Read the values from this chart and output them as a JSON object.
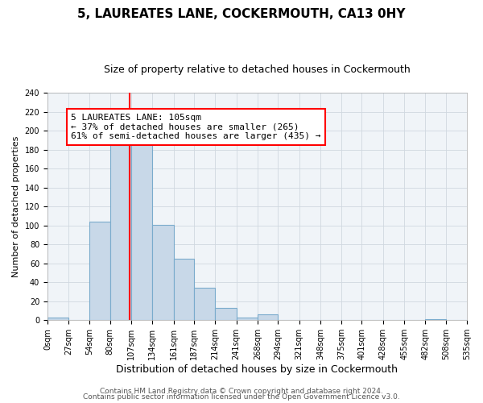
{
  "title": "5, LAUREATES LANE, COCKERMOUTH, CA13 0HY",
  "subtitle": "Size of property relative to detached houses in Cockermouth",
  "xlabel": "Distribution of detached houses by size in Cockermouth",
  "ylabel": "Number of detached properties",
  "bin_edges": [
    0,
    27,
    54,
    80,
    107,
    134,
    161,
    187,
    214,
    241,
    268,
    294,
    321,
    348,
    375,
    401,
    428,
    455,
    482,
    508,
    535
  ],
  "bin_labels": [
    "0sqm",
    "27sqm",
    "54sqm",
    "80sqm",
    "107sqm",
    "134sqm",
    "161sqm",
    "187sqm",
    "214sqm",
    "241sqm",
    "268sqm",
    "294sqm",
    "321sqm",
    "348sqm",
    "375sqm",
    "401sqm",
    "428sqm",
    "455sqm",
    "482sqm",
    "508sqm",
    "535sqm"
  ],
  "counts": [
    3,
    0,
    104,
    185,
    193,
    101,
    65,
    34,
    13,
    3,
    6,
    0,
    0,
    0,
    0,
    0,
    0,
    0,
    1,
    0
  ],
  "bar_facecolor": "#c8d8e8",
  "bar_edgecolor": "#7aabcc",
  "vline_x": 105,
  "vline_color": "red",
  "annotation_text": "5 LAUREATES LANE: 105sqm\n← 37% of detached houses are smaller (265)\n61% of semi-detached houses are larger (435) →",
  "annotation_boxcolor": "white",
  "annotation_edgecolor": "red",
  "ylim": [
    0,
    240
  ],
  "yticks": [
    0,
    20,
    40,
    60,
    80,
    100,
    120,
    140,
    160,
    180,
    200,
    220,
    240
  ],
  "footer1": "Contains HM Land Registry data © Crown copyright and database right 2024.",
  "footer2": "Contains public sector information licensed under the Open Government Licence v3.0.",
  "bg_color": "#f0f4f8",
  "grid_color": "#d0d8e0",
  "title_fontsize": 11,
  "subtitle_fontsize": 9,
  "xlabel_fontsize": 9,
  "ylabel_fontsize": 8,
  "tick_fontsize": 7,
  "annotation_fontsize": 8,
  "footer_fontsize": 6.5
}
